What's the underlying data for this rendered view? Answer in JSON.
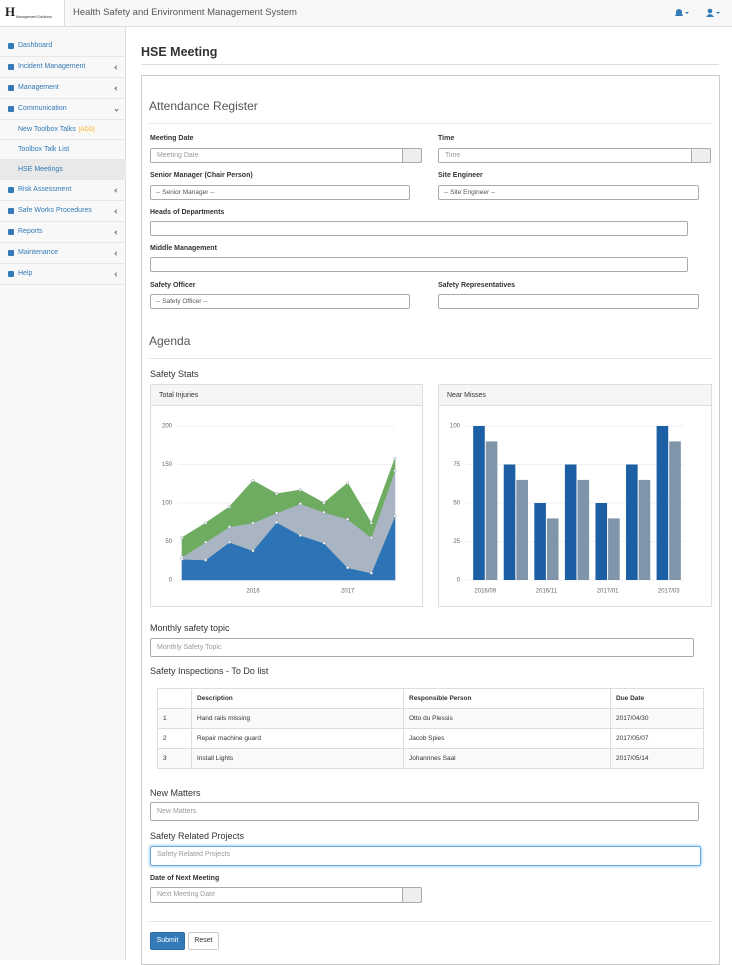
{
  "header": {
    "logo": "H",
    "logo_text": "Management Solutions",
    "title": "Health Safety and Environment Management System"
  },
  "sidebar": {
    "items": [
      {
        "label": "Dashboard"
      },
      {
        "label": "Incident Management"
      },
      {
        "label": "Management"
      },
      {
        "label": "Communication",
        "children": [
          {
            "label": "New Toolbox Talks",
            "badge": "[ADD]"
          },
          {
            "label": "Toolbox Talk List"
          },
          {
            "label": "HSE Meetings"
          }
        ]
      },
      {
        "label": "Risk Assessment"
      },
      {
        "label": "Safe Works Procedures"
      },
      {
        "label": "Reports"
      },
      {
        "label": "Maintenance"
      },
      {
        "label": "Help"
      }
    ]
  },
  "page_title": "HSE Meeting",
  "attendance": {
    "title": "Attendance Register",
    "fields": [
      {
        "label": "Meeting Date",
        "placeholder": "Meeting Date"
      },
      {
        "label": "Time",
        "placeholder": "Time"
      },
      {
        "label": "Senior Manager (Chair Person)",
        "option": "-- Senior Manager --"
      },
      {
        "label": "Site Engineer",
        "option": "-- Site Engineer --"
      },
      {
        "label": "Heads of Departments"
      },
      {
        "label": "Middle Management"
      },
      {
        "label": "Safety Officer",
        "option": "-- Safety Officer --"
      },
      {
        "label": "Safety Representatives"
      }
    ]
  },
  "agenda": {
    "title": "Agenda",
    "safety_stats": "Safety Stats",
    "monthly_topic": {
      "label": "Monthly safety topic",
      "placeholder": "Monthly Safety Topic"
    },
    "inspections": {
      "title": "Safety Inspections - To Do list",
      "columns": [
        "Description",
        "Responsible Person",
        "Due Date"
      ],
      "rows": [
        [
          1,
          "Hand rails missing",
          "Otto du Plessis",
          "2017/04/30"
        ],
        [
          2,
          "Repair machine guard",
          "Jacob Spies",
          "2017/05/07"
        ],
        [
          3,
          "Install Lights",
          "Johannnes Saal",
          "2017/05/14"
        ]
      ]
    },
    "new_matters": {
      "label": "New Matters",
      "placeholder": "New Matters"
    },
    "projects": {
      "label": "Safety Related Projects",
      "placeholder": "Safety Related Projects"
    },
    "next_meeting": {
      "label": "Date of Next Meeting",
      "placeholder": "Next Meeting Date"
    },
    "buttons": [
      "Submit",
      "Reset"
    ]
  },
  "chart_data": [
    {
      "type": "area",
      "title": "Total Injuries",
      "stacked": true,
      "x": [
        2015.25,
        2015.5,
        2015.75,
        2016,
        2016.25,
        2016.5,
        2016.75,
        2017,
        2017.25,
        2017.5
      ],
      "xlim": [
        2015.25,
        2017.5
      ],
      "xticks": [
        2016,
        2017
      ],
      "ylim": [
        0,
        200
      ],
      "yticks": [
        0,
        50,
        100,
        150,
        200
      ],
      "grid": true,
      "series": [
        {
          "color": "#2c74b5",
          "values": [
            27,
            26,
            49,
            38,
            75,
            58,
            48,
            16,
            9,
            83
          ]
        },
        {
          "color": "#a9b5c2",
          "values": [
            3,
            23,
            20,
            36,
            12,
            41,
            40,
            63,
            46,
            59
          ]
        },
        {
          "color": "#6eac61",
          "values": [
            25,
            25,
            26,
            55,
            25,
            18,
            12,
            47,
            19,
            16
          ]
        }
      ]
    },
    {
      "type": "bar",
      "title": "Near Misses",
      "categories": [
        "2016/09",
        null,
        "2016/11",
        null,
        "2017/01",
        null,
        "2017/03"
      ],
      "ylim": [
        0,
        100
      ],
      "yticks": [
        0,
        25,
        50,
        75,
        100
      ],
      "grid": true,
      "series": [
        {
          "color": "#1c5fa5",
          "values": [
            100,
            75,
            50,
            75,
            50,
            75,
            100
          ]
        },
        {
          "color": "#8095aa",
          "values": [
            90,
            65,
            40,
            65,
            40,
            65,
            90
          ]
        }
      ]
    }
  ]
}
